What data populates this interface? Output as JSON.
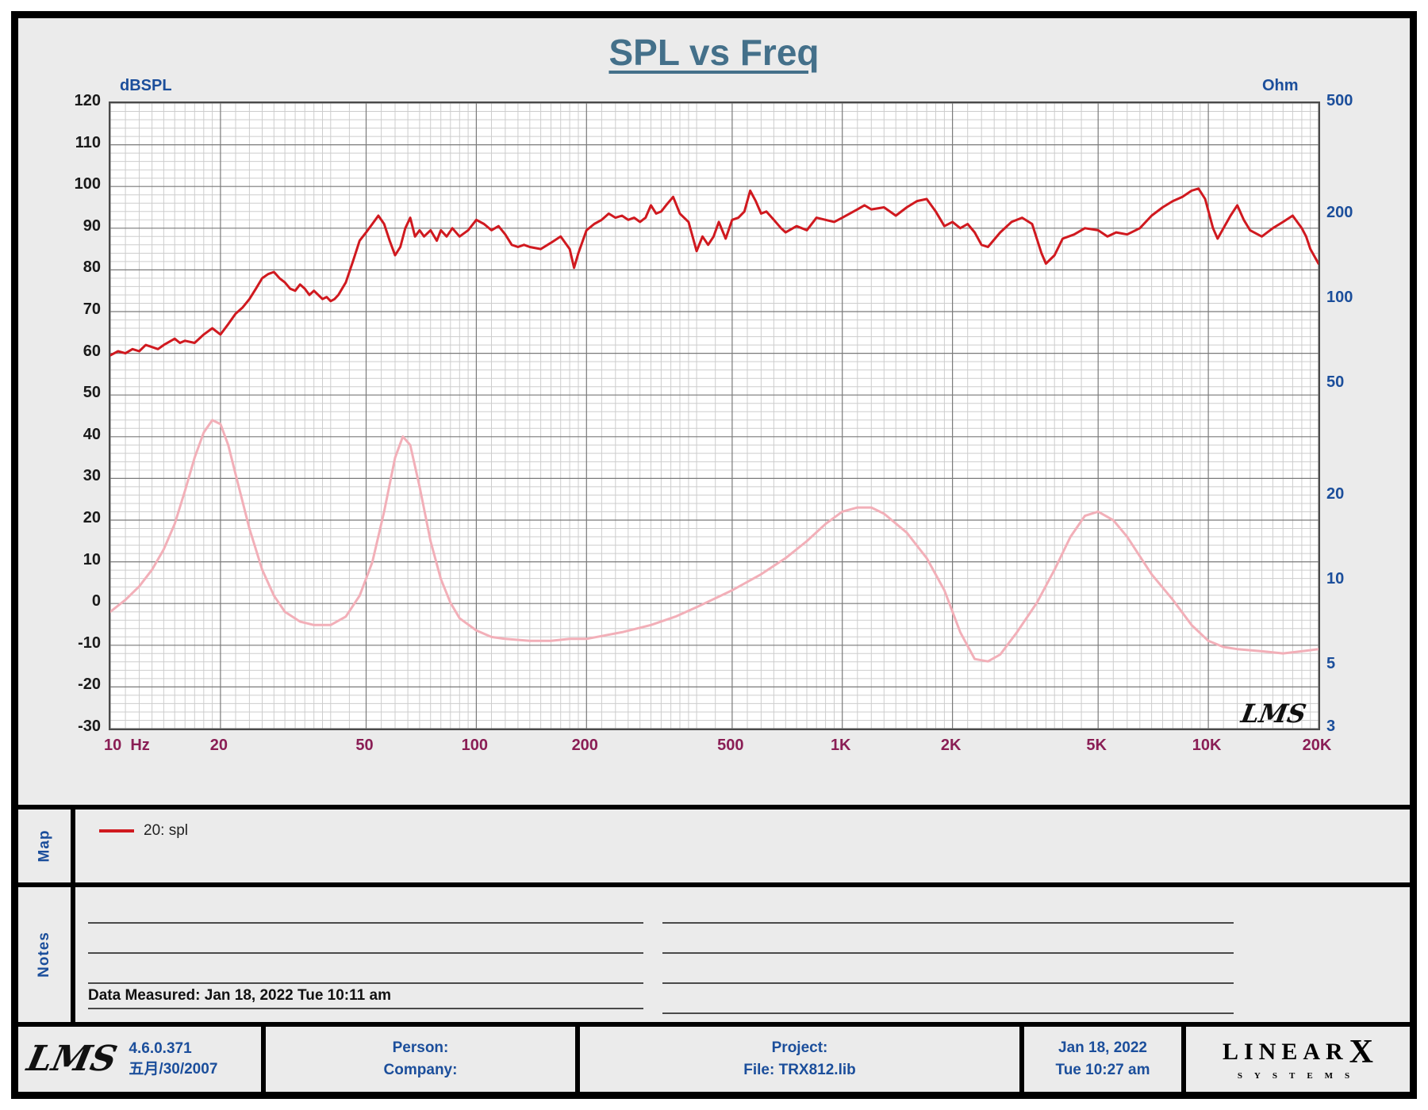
{
  "title": "SPL vs Freq",
  "chart_watermark": "LMS",
  "colors": {
    "spl": "#d0191f",
    "impedance": "#f2afb8",
    "blue_text": "#1b4e9b",
    "x_label": "#8a1e55",
    "title": "#44708a"
  },
  "chart_data": {
    "type": "line",
    "title": "SPL vs Freq",
    "x_axis": {
      "scale": "log",
      "min": 10,
      "max": 20000,
      "unit": "Hz",
      "ticks": [
        10,
        20,
        50,
        100,
        200,
        500,
        1000,
        2000,
        5000,
        10000,
        20000
      ],
      "tick_labels": [
        "10",
        "20",
        "50",
        "100",
        "200",
        "500",
        "1K",
        "2K",
        "5K",
        "10K",
        "20K"
      ]
    },
    "y_left": {
      "label": "dBSPL",
      "scale": "linear",
      "min": -30,
      "max": 120,
      "tick_step": 10
    },
    "y_right": {
      "label": "Ohm",
      "scale": "log",
      "min": 3,
      "max": 500,
      "ticks": [
        500,
        200,
        100,
        50,
        20,
        10,
        5,
        3
      ]
    },
    "grid": {
      "minor_db_step": 2,
      "log_minor_verticals": true
    },
    "series": [
      {
        "name": "20: spl",
        "axis": "left",
        "color": "#d0191f",
        "points": [
          [
            10,
            59.5
          ],
          [
            10.5,
            60.5
          ],
          [
            11,
            60
          ],
          [
            11.5,
            61
          ],
          [
            12,
            60.5
          ],
          [
            12.5,
            62
          ],
          [
            13,
            61.5
          ],
          [
            13.5,
            61
          ],
          [
            14,
            62
          ],
          [
            15,
            63.5
          ],
          [
            15.5,
            62.5
          ],
          [
            16,
            63
          ],
          [
            17,
            62.5
          ],
          [
            18,
            64.5
          ],
          [
            19,
            66
          ],
          [
            20,
            64.5
          ],
          [
            21,
            67
          ],
          [
            22,
            69.5
          ],
          [
            23,
            71
          ],
          [
            24,
            73
          ],
          [
            25,
            75.5
          ],
          [
            26,
            78
          ],
          [
            27,
            79
          ],
          [
            28,
            79.5
          ],
          [
            29,
            78
          ],
          [
            30,
            77
          ],
          [
            31,
            75.5
          ],
          [
            32,
            75
          ],
          [
            33,
            76.5
          ],
          [
            34,
            75.5
          ],
          [
            35,
            74
          ],
          [
            36,
            75
          ],
          [
            37,
            74
          ],
          [
            38,
            73
          ],
          [
            39,
            73.5
          ],
          [
            40,
            72.5
          ],
          [
            41,
            73
          ],
          [
            42,
            74
          ],
          [
            44,
            77
          ],
          [
            46,
            82
          ],
          [
            48,
            87
          ],
          [
            50,
            89
          ],
          [
            52,
            91
          ],
          [
            54,
            93
          ],
          [
            56,
            91
          ],
          [
            58,
            87
          ],
          [
            60,
            83.5
          ],
          [
            62,
            85.5
          ],
          [
            64,
            90
          ],
          [
            66,
            92.5
          ],
          [
            68,
            88
          ],
          [
            70,
            89.5
          ],
          [
            72,
            88
          ],
          [
            75,
            89.5
          ],
          [
            78,
            87
          ],
          [
            80,
            89.5
          ],
          [
            83,
            88
          ],
          [
            86,
            90
          ],
          [
            90,
            88
          ],
          [
            95,
            89.5
          ],
          [
            100,
            92
          ],
          [
            105,
            91
          ],
          [
            110,
            89.5
          ],
          [
            115,
            90.5
          ],
          [
            120,
            88.5
          ],
          [
            125,
            86
          ],
          [
            130,
            85.5
          ],
          [
            135,
            86
          ],
          [
            140,
            85.5
          ],
          [
            150,
            85
          ],
          [
            160,
            86.5
          ],
          [
            170,
            88
          ],
          [
            180,
            85
          ],
          [
            185,
            80.5
          ],
          [
            190,
            84
          ],
          [
            200,
            89.5
          ],
          [
            210,
            91
          ],
          [
            220,
            92
          ],
          [
            230,
            93.5
          ],
          [
            240,
            92.5
          ],
          [
            250,
            93
          ],
          [
            260,
            92
          ],
          [
            270,
            92.5
          ],
          [
            280,
            91.5
          ],
          [
            290,
            92.5
          ],
          [
            300,
            95.5
          ],
          [
            310,
            93.5
          ],
          [
            320,
            94
          ],
          [
            330,
            95.5
          ],
          [
            345,
            97.5
          ],
          [
            360,
            93.5
          ],
          [
            380,
            91.5
          ],
          [
            400,
            84.5
          ],
          [
            415,
            88
          ],
          [
            430,
            86
          ],
          [
            445,
            88
          ],
          [
            460,
            91.5
          ],
          [
            480,
            87.5
          ],
          [
            500,
            92
          ],
          [
            520,
            92.5
          ],
          [
            540,
            94
          ],
          [
            560,
            99
          ],
          [
            580,
            96.5
          ],
          [
            600,
            93.5
          ],
          [
            620,
            94
          ],
          [
            650,
            92
          ],
          [
            680,
            90
          ],
          [
            700,
            89
          ],
          [
            750,
            90.5
          ],
          [
            800,
            89.5
          ],
          [
            850,
            92.5
          ],
          [
            900,
            92
          ],
          [
            950,
            91.5
          ],
          [
            1000,
            92.5
          ],
          [
            1100,
            94.5
          ],
          [
            1150,
            95.5
          ],
          [
            1200,
            94.5
          ],
          [
            1300,
            95
          ],
          [
            1400,
            93
          ],
          [
            1500,
            95
          ],
          [
            1600,
            96.5
          ],
          [
            1700,
            97
          ],
          [
            1800,
            94
          ],
          [
            1900,
            90.5
          ],
          [
            2000,
            91.5
          ],
          [
            2100,
            90
          ],
          [
            2200,
            91
          ],
          [
            2300,
            89
          ],
          [
            2400,
            86
          ],
          [
            2500,
            85.5
          ],
          [
            2700,
            89
          ],
          [
            2900,
            91.5
          ],
          [
            3100,
            92.5
          ],
          [
            3300,
            91
          ],
          [
            3500,
            84
          ],
          [
            3600,
            81.5
          ],
          [
            3800,
            83.5
          ],
          [
            4000,
            87.5
          ],
          [
            4300,
            88.5
          ],
          [
            4600,
            90
          ],
          [
            5000,
            89.5
          ],
          [
            5300,
            88
          ],
          [
            5600,
            89
          ],
          [
            6000,
            88.5
          ],
          [
            6500,
            90
          ],
          [
            7000,
            93
          ],
          [
            7500,
            95
          ],
          [
            8000,
            96.5
          ],
          [
            8500,
            97.5
          ],
          [
            9000,
            99
          ],
          [
            9400,
            99.5
          ],
          [
            9800,
            97
          ],
          [
            10300,
            90
          ],
          [
            10600,
            87.5
          ],
          [
            11000,
            90
          ],
          [
            11500,
            93
          ],
          [
            12000,
            95.5
          ],
          [
            12500,
            92
          ],
          [
            13000,
            89.5
          ],
          [
            14000,
            88
          ],
          [
            15000,
            90
          ],
          [
            16000,
            91.5
          ],
          [
            17000,
            93
          ],
          [
            18000,
            90
          ],
          [
            18500,
            88
          ],
          [
            19000,
            85
          ],
          [
            20000,
            81.5
          ]
        ]
      },
      {
        "name": "impedance",
        "axis": "right",
        "color": "#f2afb8",
        "points": [
          [
            10,
            7.8
          ],
          [
            11,
            8.6
          ],
          [
            12,
            9.6
          ],
          [
            13,
            11.0
          ],
          [
            14,
            13.0
          ],
          [
            15,
            16.0
          ],
          [
            16,
            21.0
          ],
          [
            17,
            27.5
          ],
          [
            18,
            33.8
          ],
          [
            19,
            37.4
          ],
          [
            20,
            36.2
          ],
          [
            21,
            30.5
          ],
          [
            22,
            24.0
          ],
          [
            24,
            15.4
          ],
          [
            26,
            11.0
          ],
          [
            28,
            8.9
          ],
          [
            30,
            7.8
          ],
          [
            33,
            7.2
          ],
          [
            36,
            7.0
          ],
          [
            40,
            7.0
          ],
          [
            44,
            7.5
          ],
          [
            48,
            8.9
          ],
          [
            52,
            11.7
          ],
          [
            56,
            17.7
          ],
          [
            60,
            27.5
          ],
          [
            63,
            32.7
          ],
          [
            66,
            30.5
          ],
          [
            70,
            21.7
          ],
          [
            75,
            13.9
          ],
          [
            80,
            10.2
          ],
          [
            85,
            8.4
          ],
          [
            90,
            7.4
          ],
          [
            100,
            6.7
          ],
          [
            110,
            6.35
          ],
          [
            120,
            6.25
          ],
          [
            140,
            6.15
          ],
          [
            160,
            6.15
          ],
          [
            180,
            6.25
          ],
          [
            200,
            6.25
          ],
          [
            250,
            6.6
          ],
          [
            300,
            7.0
          ],
          [
            350,
            7.5
          ],
          [
            400,
            8.1
          ],
          [
            500,
            9.3
          ],
          [
            600,
            10.6
          ],
          [
            700,
            12.1
          ],
          [
            800,
            13.9
          ],
          [
            900,
            16.0
          ],
          [
            1000,
            17.7
          ],
          [
            1100,
            18.3
          ],
          [
            1200,
            18.3
          ],
          [
            1300,
            17.4
          ],
          [
            1500,
            14.9
          ],
          [
            1700,
            12.1
          ],
          [
            1900,
            9.3
          ],
          [
            2100,
            6.6
          ],
          [
            2300,
            5.3
          ],
          [
            2500,
            5.2
          ],
          [
            2700,
            5.5
          ],
          [
            3000,
            6.6
          ],
          [
            3400,
            8.4
          ],
          [
            3800,
            11.0
          ],
          [
            4200,
            14.4
          ],
          [
            4600,
            17.1
          ],
          [
            5000,
            17.7
          ],
          [
            5500,
            16.5
          ],
          [
            6000,
            14.4
          ],
          [
            7000,
            10.6
          ],
          [
            8000,
            8.6
          ],
          [
            9000,
            7.0
          ],
          [
            10000,
            6.15
          ],
          [
            11000,
            5.85
          ],
          [
            12000,
            5.75
          ],
          [
            14000,
            5.65
          ],
          [
            16000,
            5.55
          ],
          [
            18000,
            5.65
          ],
          [
            20000,
            5.75
          ]
        ]
      }
    ]
  },
  "map": {
    "label": "Map",
    "legend_label": "20: spl"
  },
  "notes": {
    "label": "Notes",
    "data_measured": "Data Measured: Jan 18, 2022  Tue 10:11 am"
  },
  "footer": {
    "lms_logo": "LMS",
    "version": "4.6.0.371",
    "build_date": "五月/30/2007",
    "person_label": "Person:",
    "company_label": "Company:",
    "project_label": "Project:",
    "file_label": "File: TRX812.lib",
    "measure_date": "Jan 18, 2022",
    "measure_time": "Tue 10:27 am",
    "brand_linear": "LINEAR",
    "brand_x": "X",
    "brand_systems": "SYSTEMS"
  }
}
